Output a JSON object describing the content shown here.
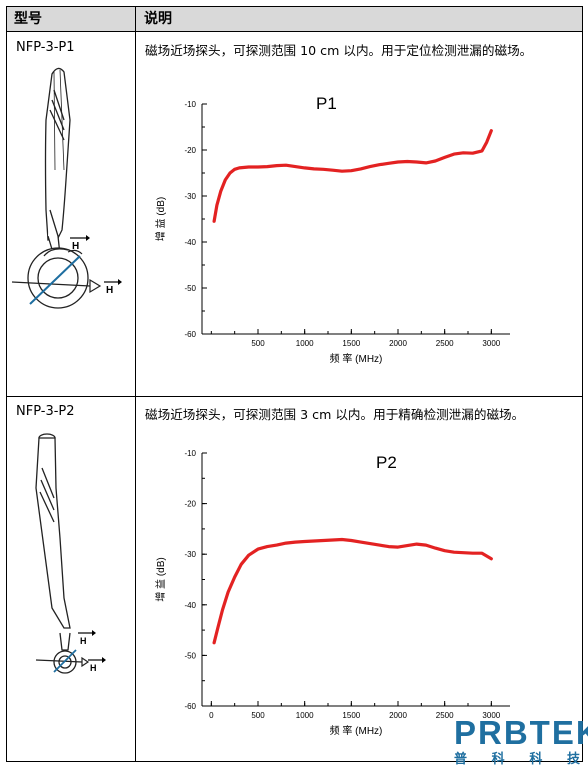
{
  "table": {
    "header_model": "型号",
    "header_desc": "说明"
  },
  "rows": [
    {
      "model": "NFP-3-P1",
      "desc": "磁场近场探头，可探测范围 10 cm 以内。用于定位检测泄漏的磁场。",
      "probe_labels": [
        "H",
        "H"
      ]
    },
    {
      "model": "NFP-3-P2",
      "desc": "磁场近场探头，可探测范围 3 cm 以内。用于精确检测泄漏的磁场。",
      "probe_labels": [
        "H",
        "H"
      ]
    }
  ],
  "chart_data": [
    {
      "type": "line",
      "title": "P1",
      "xlabel": "频 率 (MHz)",
      "ylabel": "增 益 (dB)",
      "xlim": [
        -100,
        3200
      ],
      "ylim": [
        -60,
        -10
      ],
      "xticks": [
        "500",
        "1000",
        "1500",
        "2000",
        "2500",
        "3000"
      ],
      "yticks": [
        "-10",
        "-20",
        "-30",
        "-40",
        "-50",
        "-60"
      ],
      "line_color": "#e32222",
      "series": [
        {
          "x": [
            30,
            60,
            100,
            150,
            200,
            250,
            300,
            400,
            500,
            600,
            700,
            800,
            900,
            1000,
            1100,
            1200,
            1300,
            1400,
            1500,
            1600,
            1700,
            1800,
            1900,
            2000,
            2100,
            2200,
            2300,
            2400,
            2500,
            2600,
            2700,
            2800,
            2900,
            2950,
            3000
          ],
          "y": [
            -35.5,
            -32,
            -29,
            -26.5,
            -25,
            -24.2,
            -23.9,
            -23.7,
            -23.7,
            -23.6,
            -23.4,
            -23.3,
            -23.6,
            -23.9,
            -24.1,
            -24.2,
            -24.4,
            -24.6,
            -24.5,
            -24.1,
            -23.6,
            -23.2,
            -22.9,
            -22.6,
            -22.5,
            -22.6,
            -22.8,
            -22.4,
            -21.6,
            -20.9,
            -20.6,
            -20.7,
            -20.2,
            -18.3,
            -15.8
          ]
        }
      ]
    },
    {
      "type": "line",
      "title": "P2",
      "xlabel": "频 率 (MHz)",
      "ylabel": "增 益 (dB)",
      "xlim": [
        -100,
        3200
      ],
      "ylim": [
        -60,
        -10
      ],
      "xticks": [
        "0",
        "500",
        "1000",
        "1500",
        "2000",
        "2500",
        "3000"
      ],
      "yticks": [
        "-10",
        "-20",
        "-30",
        "-40",
        "-50",
        "-60"
      ],
      "line_color": "#e32222",
      "series": [
        {
          "x": [
            30,
            70,
            120,
            180,
            250,
            320,
            400,
            500,
            600,
            700,
            800,
            900,
            1000,
            1100,
            1200,
            1300,
            1400,
            1500,
            1600,
            1700,
            1800,
            1900,
            2000,
            2100,
            2200,
            2300,
            2400,
            2500,
            2600,
            2700,
            2800,
            2900,
            3000
          ],
          "y": [
            -47.5,
            -44.5,
            -41,
            -37.5,
            -34.5,
            -32,
            -30.2,
            -29,
            -28.5,
            -28.2,
            -27.8,
            -27.6,
            -27.5,
            -27.4,
            -27.3,
            -27.2,
            -27.1,
            -27.3,
            -27.6,
            -27.9,
            -28.2,
            -28.5,
            -28.6,
            -28.3,
            -28,
            -28.2,
            -28.8,
            -29.3,
            -29.6,
            -29.7,
            -29.8,
            -29.8,
            -30.9
          ]
        }
      ]
    }
  ],
  "logo": {
    "main": "PRBTEK",
    "sub": [
      "普",
      "科",
      "科",
      "技"
    ]
  }
}
